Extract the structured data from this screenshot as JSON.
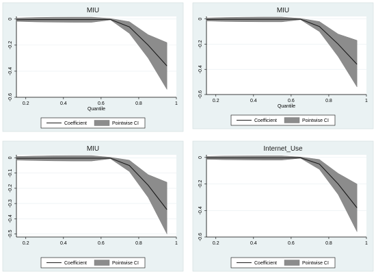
{
  "chart_data": [
    {
      "type": "area",
      "title": "MIU",
      "xlabel": "Quantile",
      "ylabel": "",
      "xlim": [
        0.15,
        1.0
      ],
      "ylim": [
        -0.6,
        0.02
      ],
      "xticks": [
        "0.2",
        "0.4",
        "0.6",
        "0.8",
        "1"
      ],
      "yticks": [
        "0",
        "-0.2",
        "-0.4",
        "-0.6"
      ],
      "legend": [
        "Coefficient",
        "Pointwise CI"
      ],
      "legend_position": "bottom",
      "grid": true,
      "x": [
        0.15,
        0.25,
        0.35,
        0.45,
        0.55,
        0.65,
        0.75,
        0.85,
        0.95
      ],
      "series": [
        {
          "name": "Coefficient",
          "values": [
            -0.005,
            -0.004,
            -0.004,
            -0.004,
            -0.004,
            -0.003,
            -0.06,
            -0.2,
            -0.36
          ]
        },
        {
          "name": "Pointwise CI",
          "lower": [
            -0.018,
            -0.022,
            -0.024,
            -0.025,
            -0.025,
            -0.007,
            -0.11,
            -0.3,
            -0.54
          ],
          "upper": [
            0.008,
            0.012,
            0.014,
            0.015,
            0.015,
            0.004,
            -0.02,
            -0.12,
            -0.18
          ]
        }
      ]
    },
    {
      "type": "area",
      "title": "MIU",
      "xlabel": "Quantile",
      "ylabel": "",
      "xlim": [
        0.15,
        1.0
      ],
      "ylim": [
        -0.6,
        0.02
      ],
      "xticks": [
        "0.2",
        "0.4",
        "0.6",
        "0.8",
        "1"
      ],
      "yticks": [
        "0",
        "-0.2",
        "-0.4",
        "-0.6"
      ],
      "legend": [
        "Coefficient",
        "Pointwise CI"
      ],
      "legend_position": "bottom",
      "grid": true,
      "x": [
        0.15,
        0.25,
        0.35,
        0.45,
        0.55,
        0.65,
        0.75,
        0.85,
        0.95
      ],
      "series": [
        {
          "name": "Coefficient",
          "values": [
            -0.004,
            -0.003,
            -0.003,
            -0.003,
            -0.003,
            -0.002,
            -0.06,
            -0.2,
            -0.36
          ]
        },
        {
          "name": "Pointwise CI",
          "lower": [
            -0.016,
            -0.02,
            -0.022,
            -0.023,
            -0.023,
            -0.006,
            -0.1,
            -0.3,
            -0.54
          ],
          "upper": [
            0.008,
            0.012,
            0.014,
            0.015,
            0.015,
            0.004,
            -0.02,
            -0.12,
            -0.17
          ]
        }
      ]
    },
    {
      "type": "area",
      "title": "MIU",
      "xlabel": "",
      "ylabel": "",
      "xlim": [
        0.15,
        1.0
      ],
      "ylim": [
        -0.52,
        0.02
      ],
      "xticks": [
        "0.2",
        "0.4",
        "0.6",
        "0.8",
        "1"
      ],
      "yticks": [
        "0",
        "-0.1",
        "-0.2",
        "-0.3",
        "-0.4",
        "-0.5"
      ],
      "legend": [
        "Coefficient",
        "Pointwise CI"
      ],
      "legend_position": "bottom",
      "grid": true,
      "x": [
        0.15,
        0.25,
        0.35,
        0.45,
        0.55,
        0.65,
        0.75,
        0.85,
        0.95
      ],
      "series": [
        {
          "name": "Coefficient",
          "values": [
            -0.003,
            -0.003,
            -0.002,
            -0.002,
            -0.002,
            -0.002,
            -0.05,
            -0.18,
            -0.34
          ]
        },
        {
          "name": "Pointwise CI",
          "lower": [
            -0.015,
            -0.018,
            -0.02,
            -0.021,
            -0.021,
            -0.006,
            -0.09,
            -0.26,
            -0.5
          ],
          "upper": [
            0.009,
            0.012,
            0.014,
            0.015,
            0.015,
            0.004,
            -0.015,
            -0.11,
            -0.16
          ]
        }
      ]
    },
    {
      "type": "area",
      "title": "Internet_Use",
      "xlabel": "",
      "ylabel": "",
      "xlim": [
        0.15,
        1.0
      ],
      "ylim": [
        -0.6,
        0.02
      ],
      "xticks": [
        "0.2",
        "0.4",
        "0.6",
        "0.8",
        "1"
      ],
      "yticks": [
        "0",
        "-0.2",
        "-0.4",
        "-0.6"
      ],
      "legend": [
        "Coefficient",
        "Pointwise CI"
      ],
      "legend_position": "bottom",
      "grid": true,
      "x": [
        0.15,
        0.25,
        0.35,
        0.45,
        0.55,
        0.65,
        0.75,
        0.85,
        0.95
      ],
      "series": [
        {
          "name": "Coefficient",
          "values": [
            -0.003,
            -0.003,
            -0.003,
            -0.003,
            -0.003,
            -0.002,
            -0.05,
            -0.2,
            -0.38
          ]
        },
        {
          "name": "Pointwise CI",
          "lower": [
            -0.014,
            -0.017,
            -0.019,
            -0.02,
            -0.02,
            -0.006,
            -0.09,
            -0.28,
            -0.56
          ],
          "upper": [
            0.008,
            0.011,
            0.012,
            0.013,
            0.013,
            0.004,
            -0.015,
            -0.12,
            -0.2
          ]
        }
      ]
    }
  ]
}
